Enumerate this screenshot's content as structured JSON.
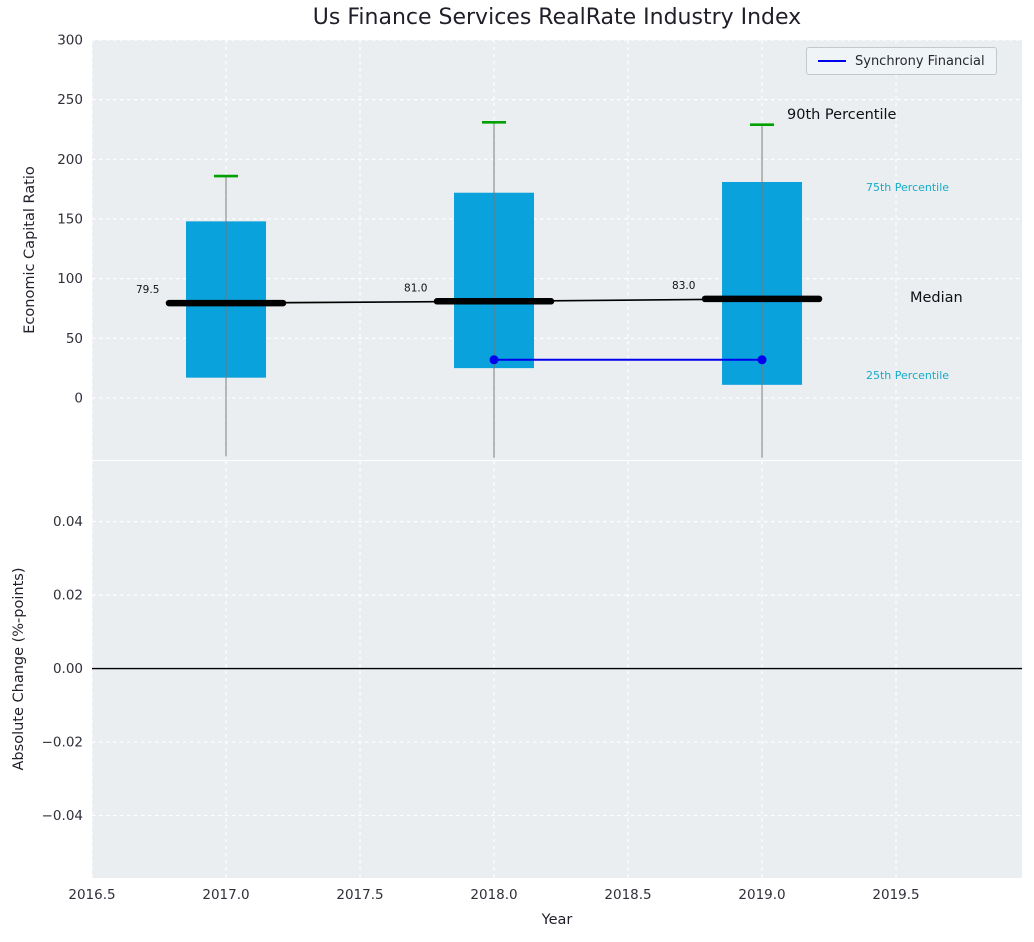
{
  "figure": {
    "title": "Us Finance Services RealRate Industry Index",
    "background": "#ffffff",
    "panel_background": "#eaeef0",
    "grid_color": "#ffffff",
    "tick_color": "#30303a",
    "text_color": "#1f1f2a"
  },
  "chart_data": [
    {
      "type": "boxplot",
      "title": "Us Finance Services RealRate Industry Index",
      "xlabel": "",
      "ylabel": "Economic Capital Ratio",
      "xlim": [
        2016.5,
        2019.97
      ],
      "ylim": [
        -52,
        300
      ],
      "grid": true,
      "xticks": [
        2016.5,
        2017,
        2017.5,
        2018,
        2018.5,
        2019,
        2019.5
      ],
      "xtick_labels": [
        "2016.5",
        "2017.0",
        "2017.5",
        "2018.0",
        "2018.5",
        "2019.0",
        "2019.5"
      ],
      "yticks": [
        0,
        50,
        100,
        150,
        200,
        250,
        300
      ],
      "ytick_labels": [
        "0",
        "50",
        "100",
        "150",
        "200",
        "250",
        "300"
      ],
      "boxes": [
        {
          "x": 2017,
          "p10": -49,
          "p25": 17,
          "median": 79.5,
          "p75": 148,
          "p90": 186,
          "median_label": "79.5"
        },
        {
          "x": 2018,
          "p10": -50,
          "p25": 25,
          "median": 81.0,
          "p75": 172,
          "p90": 231,
          "median_label": "81.0"
        },
        {
          "x": 2019,
          "p10": -50,
          "p25": 11,
          "median": 83.0,
          "p75": 181,
          "p90": 229,
          "median_label": "83.0"
        }
      ],
      "median_trend": {
        "x": [
          2017,
          2018,
          2019
        ],
        "y": [
          79.5,
          81.0,
          83.0
        ]
      },
      "series": [
        {
          "name": "Synchrony Financial",
          "x": [
            2018,
            2019
          ],
          "y": [
            32,
            32
          ],
          "color": "#0000ee",
          "marker": "circle"
        }
      ],
      "annotations": [
        {
          "text": "90th Percentile",
          "x": 2019.1,
          "y": 234,
          "color": "#101016",
          "size": 14.5
        },
        {
          "text": "75th Percentile",
          "x": 2019.39,
          "y": 175,
          "color": "#17abc9",
          "size": 11
        },
        {
          "text": "Median",
          "x": 2019.56,
          "y": 82,
          "color": "#101016",
          "size": 14.5
        },
        {
          "text": "25th Percentile",
          "x": 2019.39,
          "y": 17,
          "color": "#17abc9",
          "size": 11
        }
      ],
      "legend": {
        "position": "upper right",
        "entries": [
          {
            "label": "Synchrony Financial",
            "color": "#0000ee"
          }
        ]
      },
      "colors": {
        "box_fill": "#0aa2dc",
        "cap": "#00a000",
        "whisker": "#777777",
        "median": "#000000"
      }
    },
    {
      "type": "line",
      "xlabel": "Year",
      "ylabel": "Absolute Change (%-points)",
      "xlim": [
        2016.5,
        2019.97
      ],
      "ylim": [
        -0.057,
        0.0565
      ],
      "grid": true,
      "xticks": [
        2016.5,
        2017,
        2017.5,
        2018,
        2018.5,
        2019,
        2019.5
      ],
      "xtick_labels": [
        "2016.5",
        "2017.0",
        "2017.5",
        "2018.0",
        "2018.5",
        "2019.0",
        "2019.5"
      ],
      "yticks": [
        0.04,
        0.02,
        0,
        -0.02,
        -0.04
      ],
      "ytick_labels": [
        "0.04",
        "0.02",
        "0.00",
        "−0.02",
        "−0.04"
      ],
      "zero_line": {
        "y": 0,
        "color": "#000000"
      },
      "series": []
    }
  ]
}
